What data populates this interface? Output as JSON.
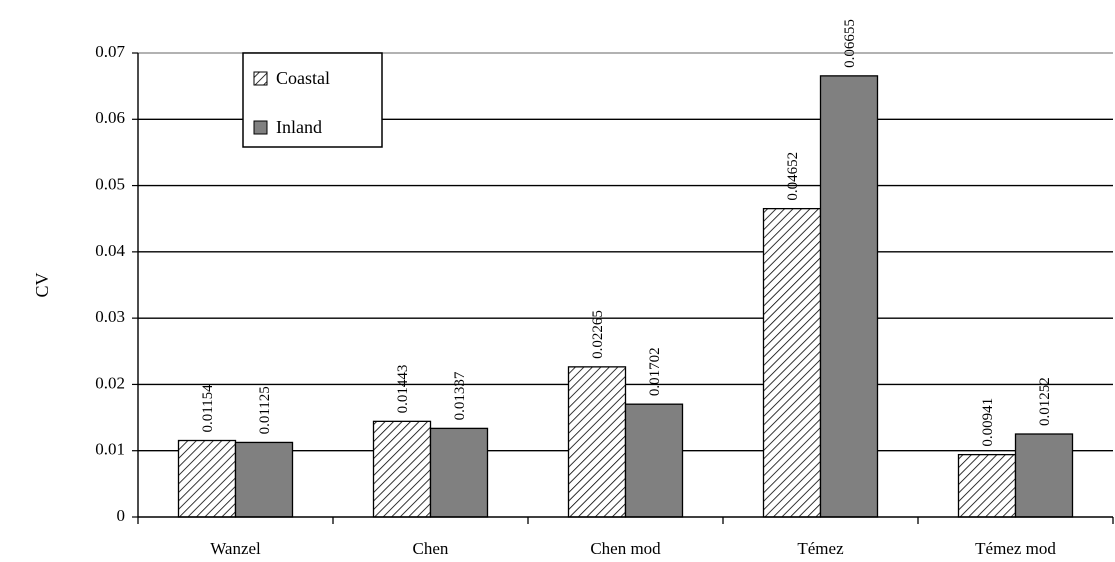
{
  "chart_data": {
    "type": "bar",
    "categories": [
      "Wanzel",
      "Chen",
      "Chen mod",
      "Témez",
      "Témez mod"
    ],
    "series": [
      {
        "name": "Coastal",
        "values": [
          0.01154,
          0.01443,
          0.02265,
          0.04652,
          0.00941
        ],
        "labels": [
          "0.01154",
          "0.01443",
          "0.02265",
          "0.04652",
          "0.00941"
        ],
        "fill": "hatch"
      },
      {
        "name": "Inland",
        "values": [
          0.01125,
          0.01337,
          0.01702,
          0.06655,
          0.01252
        ],
        "labels": [
          "0.01125",
          "0.01337",
          "0.01702",
          "0.06655",
          "0.01252"
        ],
        "fill": "#808080"
      }
    ],
    "ylabel": "CV",
    "xlabel": "",
    "ylim": [
      0,
      0.07
    ],
    "yticks": [
      0,
      0.01,
      0.02,
      0.03,
      0.04,
      0.05,
      0.06,
      0.07
    ],
    "ytick_labels": [
      "0",
      "0.01",
      "0.02",
      "0.03",
      "0.04",
      "0.05",
      "0.06",
      "0.07"
    ],
    "grid": true,
    "legend_position": "top-left"
  }
}
